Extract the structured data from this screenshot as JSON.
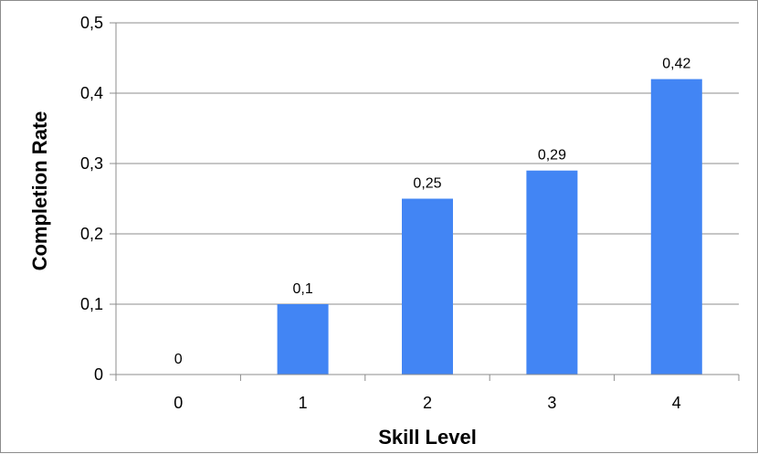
{
  "chart_data": {
    "type": "bar",
    "title": "",
    "xlabel": "Skill Level",
    "ylabel": "Completion Rate",
    "categories": [
      "0",
      "1",
      "2",
      "3",
      "4"
    ],
    "values": [
      0,
      0.1,
      0.25,
      0.29,
      0.42
    ],
    "data_labels": [
      "0",
      "0,1",
      "0,25",
      "0,29",
      "0,42"
    ],
    "ylim": [
      0,
      0.5
    ],
    "yticks": [
      0,
      0.1,
      0.2,
      0.3,
      0.4,
      0.5
    ],
    "ytick_labels": [
      "0",
      "0,1",
      "0,2",
      "0,3",
      "0,4",
      "0,5"
    ],
    "grid": true,
    "legend": "none",
    "bar_color": "#4285f4",
    "grid_color": "#8c8c8c"
  }
}
